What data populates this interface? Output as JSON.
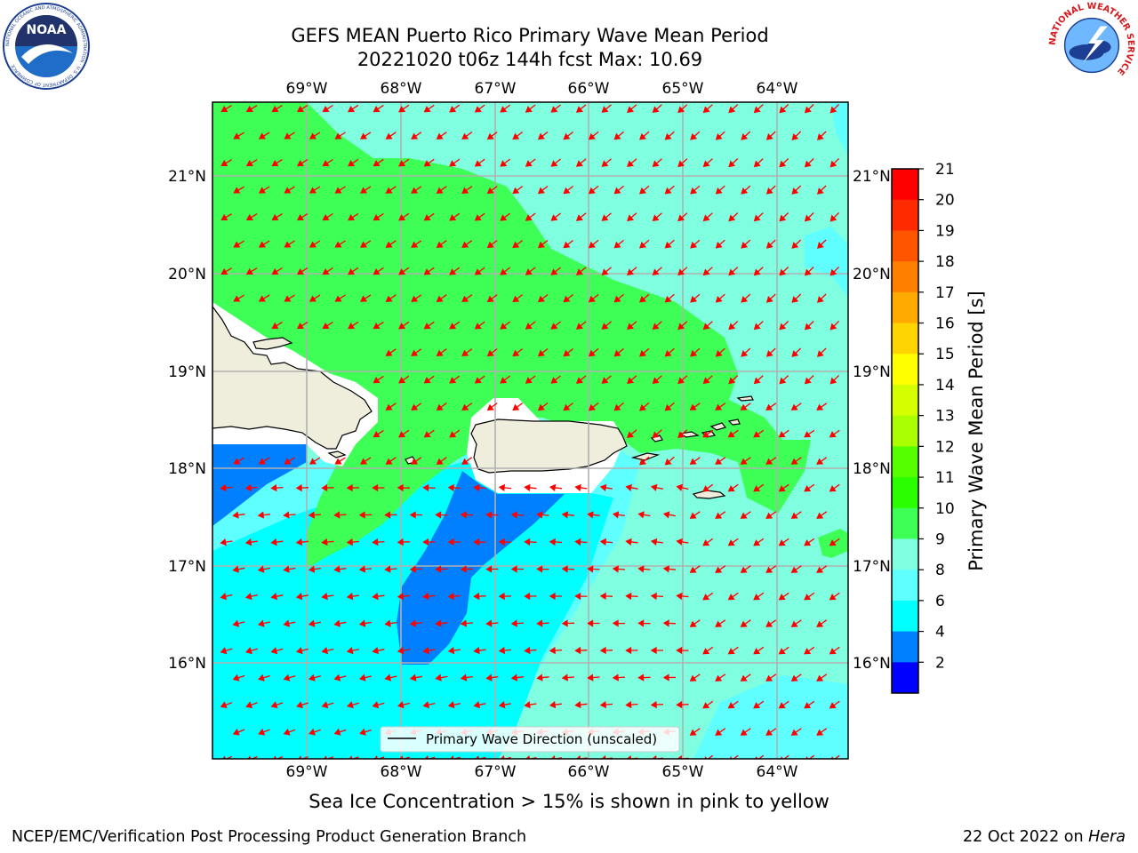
{
  "title": {
    "line1": "GEFS MEAN Puerto Rico Primary Wave Mean Period",
    "line2": "20221020 t06z 144h fcst   Max: 10.69"
  },
  "logos": {
    "left": {
      "icon": "noaa-logo",
      "text": "NOAA",
      "ring_text": "NATIONAL OCEANIC AND ATMOSPHERIC ADMINISTRATION · U.S. DEPARTMENT OF COMMERCE"
    },
    "right": {
      "icon": "nws-logo",
      "ring_text": "NATIONAL WEATHER SERVICE"
    }
  },
  "map": {
    "lon_ticks": [
      "69°W",
      "68°W",
      "67°W",
      "66°W",
      "65°W",
      "64°W"
    ],
    "lat_ticks": [
      "21°N",
      "20°N",
      "19°N",
      "18°N",
      "17°N",
      "16°N"
    ],
    "lon_values": [
      -69,
      -68,
      -67,
      -66,
      -65,
      -64
    ],
    "lat_values": [
      21,
      20,
      19,
      18,
      17,
      16
    ],
    "extent": {
      "lon_min": -70,
      "lon_max": -63.25,
      "lat_min": 15,
      "lat_max": 21.75
    },
    "grid": true,
    "land_color": "#efeddc",
    "arrow_color": "#ff0000",
    "legend": "Primary Wave Direction (unscaled)"
  },
  "colorbar": {
    "label": "Primary Wave Mean Period [s]",
    "ticks": [
      "21",
      "20",
      "19",
      "18",
      "17",
      "16",
      "15",
      "14",
      "13",
      "12",
      "11",
      "10",
      "9",
      "8",
      "6",
      "4",
      "2"
    ],
    "colors": [
      "#ff0000",
      "#ff2a00",
      "#ff5500",
      "#ff7f00",
      "#ffaa00",
      "#ffd400",
      "#ffff00",
      "#d4ff00",
      "#aaff00",
      "#55ff00",
      "#2aff00",
      "#3dff55",
      "#80ffe0",
      "#60ffff",
      "#00ffff",
      "#0080ff",
      "#0000ff"
    ]
  },
  "notes": {
    "sea_ice": "Sea Ice Concentration > 15% is shown in pink to yellow"
  },
  "footer": {
    "left": "NCEP/EMC/Verification Post Processing Product Generation Branch",
    "right_prefix": "22 Oct 2022 on ",
    "right_host": "Hera"
  }
}
